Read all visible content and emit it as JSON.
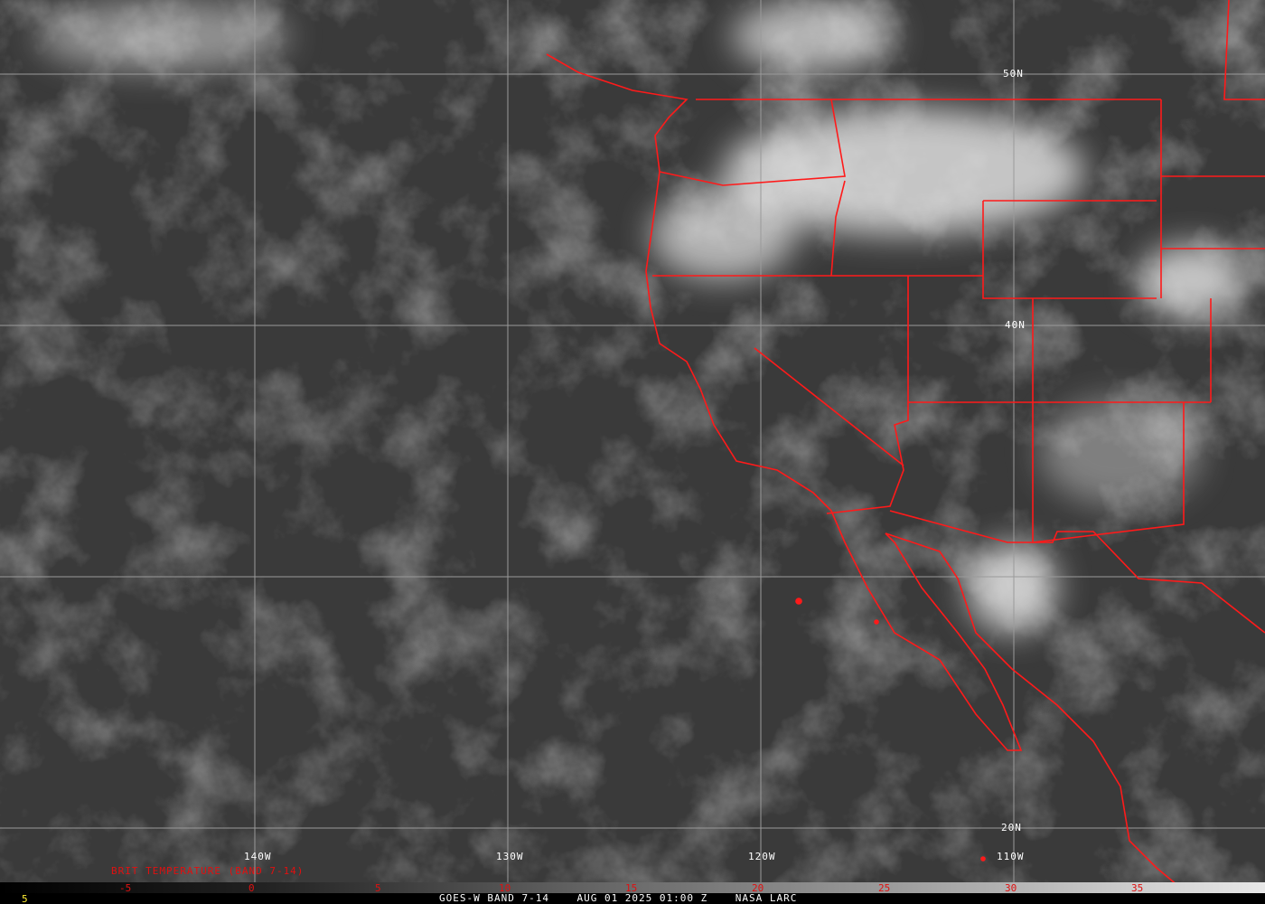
{
  "product": {
    "caption": "GOES-W BAND 7-14    AUG 01 2025 01:00 Z    NASA LARC",
    "frame_number": "5"
  },
  "colorbar": {
    "title": "BRIT TEMPERATURE (BAND 7-14)",
    "ticks": [
      "-5",
      "0",
      "5",
      "10",
      "15",
      "20",
      "25",
      "30",
      "35"
    ],
    "color": "#e01010"
  },
  "graticule": {
    "longitudes": [
      "140W",
      "130W",
      "120W",
      "110W"
    ],
    "latitudes": [
      "50N",
      "40N",
      "20N"
    ]
  },
  "colors": {
    "borders": "#ff1a1a",
    "grid": "#9a9a9a",
    "labels": "#ffffff"
  }
}
